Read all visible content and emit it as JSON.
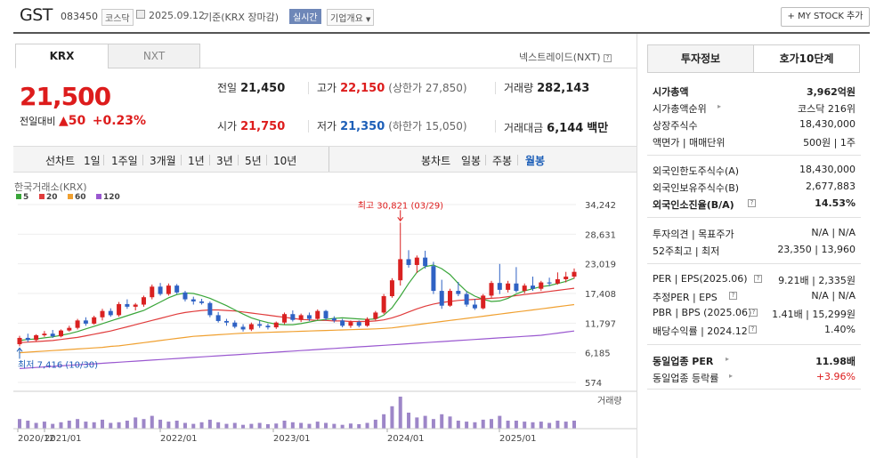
{
  "header": {
    "name": "GST",
    "code": "083450",
    "market_badge": "코스닥",
    "date_text": "2025.09.12",
    "basis_text": "기준(KRX 장마감)",
    "realtime_badge": "실시간",
    "company_overview": "기업개요",
    "my_stock_label": "+ MY STOCK 추가"
  },
  "tabs": {
    "krx": "KRX",
    "nxt": "NXT",
    "nxt_link": "넥스트레이드(NXT)"
  },
  "price": {
    "current": "21,500",
    "change_label": "전일대비",
    "change_arrow": "▲",
    "change_value": "50",
    "change_rate": "+0.23%"
  },
  "quote": {
    "prev_label": "전일",
    "prev_value": "21,450",
    "high_label": "고가",
    "high_value": "22,150",
    "upper_limit": "(상한가 27,850)",
    "volume_label": "거래량",
    "volume_value": "282,143",
    "open_label": "시가",
    "open_value": "21,750",
    "low_label": "저가",
    "low_value": "21,350",
    "lower_limit": "(하한가 15,050)",
    "amount_label": "거래대금",
    "amount_value": "6,144",
    "amount_unit": "백만"
  },
  "periods": {
    "line_chart": "선차트",
    "day1": "1일",
    "week1": "1주일",
    "month3": "3개월",
    "year1": "1년",
    "year3": "3년",
    "year5": "5년",
    "year10": "10년",
    "candle_chart": "봉차트",
    "daily": "일봉",
    "weekly": "주봉",
    "monthly": "월봉"
  },
  "right_panel": {
    "tab_info": "투자정보",
    "tab_hoga": "호가10단계",
    "market_cap_label": "시가총액",
    "market_cap_value": "3,962억원",
    "market_cap_rank_label": "시가총액순위",
    "market_cap_rank_value": "코스닥 216위",
    "listed_shares_label": "상장주식수",
    "listed_shares_value": "18,430,000",
    "face_value_label": "액면가 | 매매단위",
    "face_value_value": "500원 | 1주",
    "foreign_limit_label": "외국인한도주식수(A)",
    "foreign_limit_value": "18,430,000",
    "foreign_hold_label": "외국인보유주식수(B)",
    "foreign_hold_value": "2,677,883",
    "foreign_ratio_label": "외국인소진율(B/A)",
    "foreign_ratio_value": "14.53%",
    "opinion_label": "투자의견 | 목표주가",
    "opinion_value": "N/A | N/A",
    "week52_label": "52주최고 | 최저",
    "week52_value": "23,350 | 13,960",
    "per_label": "PER | EPS(2025.06)",
    "per_value": "9.21배 | 2,335원",
    "est_per_label": "추정PER | EPS",
    "est_per_value": "N/A | N/A",
    "pbr_label": "PBR | BPS (2025.06)",
    "pbr_value": "1.41배 | 15,299원",
    "dividend_label": "배당수익률 | 2024.12",
    "dividend_value": "1.40%",
    "sector_per_label": "동일업종 PER",
    "sector_per_value": "11.98배",
    "sector_rate_label": "동일업종 등락률",
    "sector_rate_value": "+3.96%"
  },
  "chart_data": {
    "type": "candlestick",
    "title": "한국거래소(KRX)",
    "legend": [
      {
        "name": "5",
        "color": "#3aa63a"
      },
      {
        "name": "20",
        "color": "#e03c3c"
      },
      {
        "name": "60",
        "color": "#f0a030"
      },
      {
        "name": "120",
        "color": "#9a58d0"
      }
    ],
    "y_ticks": [
      "34,242",
      "28,631",
      "23,019",
      "17,408",
      "11,797",
      "6,185",
      "574"
    ],
    "y_tick_values": [
      34242,
      28631,
      23019,
      17408,
      11797,
      6185,
      574
    ],
    "x_ticks": [
      "2020/12",
      "2021/01",
      "2022/01",
      "2023/01",
      "2024/01",
      "2025/01"
    ],
    "max_label": "최고 30,821 (03/29)",
    "min_label": "최저 7,416 (10/30)",
    "volume_label": "거래량",
    "candles": [
      [
        7800,
        9400,
        7416,
        9000
      ],
      [
        9000,
        9800,
        8200,
        8600
      ],
      [
        8600,
        9700,
        8400,
        9500
      ],
      [
        9500,
        10300,
        9200,
        9800
      ],
      [
        9800,
        10500,
        9000,
        9300
      ],
      [
        9300,
        10600,
        9100,
        10400
      ],
      [
        10400,
        11300,
        10200,
        10900
      ],
      [
        10900,
        12600,
        10600,
        12300
      ],
      [
        12300,
        12900,
        11300,
        11700
      ],
      [
        11700,
        13200,
        11500,
        12900
      ],
      [
        12900,
        14500,
        12300,
        14100
      ],
      [
        14100,
        14600,
        13000,
        13300
      ],
      [
        13300,
        15800,
        13000,
        15400
      ],
      [
        15400,
        16300,
        14500,
        14900
      ],
      [
        14900,
        15600,
        14200,
        15300
      ],
      [
        15300,
        17000,
        14900,
        16700
      ],
      [
        16700,
        19100,
        16300,
        18700
      ],
      [
        18700,
        19400,
        17000,
        17300
      ],
      [
        17300,
        19300,
        17000,
        18900
      ],
      [
        18900,
        19200,
        17300,
        17600
      ],
      [
        17600,
        17900,
        15900,
        16300
      ],
      [
        16300,
        16800,
        15300,
        15900
      ],
      [
        15900,
        16400,
        15300,
        15600
      ],
      [
        15600,
        15900,
        12900,
        13300
      ],
      [
        13300,
        13900,
        11900,
        12200
      ],
      [
        12200,
        12600,
        11300,
        11900
      ],
      [
        11900,
        12300,
        10800,
        11100
      ],
      [
        11100,
        11600,
        10200,
        10600
      ],
      [
        10600,
        11900,
        10300,
        11600
      ],
      [
        11600,
        12300,
        10900,
        11300
      ],
      [
        11300,
        11700,
        10600,
        11000
      ],
      [
        11000,
        12100,
        10700,
        11900
      ],
      [
        11900,
        13800,
        11600,
        13500
      ],
      [
        13500,
        14200,
        12100,
        12400
      ],
      [
        12400,
        13600,
        12000,
        13300
      ],
      [
        13300,
        13800,
        12200,
        12600
      ],
      [
        12600,
        14400,
        12400,
        14100
      ],
      [
        14100,
        14300,
        12300,
        12700
      ],
      [
        12700,
        13100,
        11900,
        12300
      ],
      [
        12300,
        12600,
        11000,
        11300
      ],
      [
        11300,
        12300,
        10900,
        12000
      ],
      [
        12000,
        12300,
        11000,
        11300
      ],
      [
        11300,
        12900,
        11100,
        12600
      ],
      [
        12600,
        14100,
        12300,
        13800
      ],
      [
        13800,
        17300,
        13500,
        16900
      ],
      [
        16900,
        20300,
        16600,
        19900
      ],
      [
        19900,
        30821,
        18900,
        23900
      ],
      [
        23900,
        25600,
        22300,
        22800
      ],
      [
        22800,
        24600,
        21300,
        24200
      ],
      [
        24200,
        25500,
        22100,
        22600
      ],
      [
        22600,
        23400,
        17300,
        17900
      ],
      [
        17900,
        20000,
        14500,
        15100
      ],
      [
        15100,
        18300,
        14900,
        17900
      ],
      [
        17900,
        19600,
        16900,
        17300
      ],
      [
        17300,
        17800,
        14900,
        15300
      ],
      [
        15300,
        16400,
        14300,
        14600
      ],
      [
        14600,
        17300,
        14400,
        17000
      ],
      [
        17000,
        19800,
        16600,
        19400
      ],
      [
        19400,
        23000,
        17300,
        18100
      ],
      [
        18100,
        19800,
        17600,
        19300
      ],
      [
        19300,
        22400,
        17600,
        17900
      ],
      [
        17900,
        19300,
        17400,
        18900
      ],
      [
        18900,
        20600,
        17900,
        18300
      ],
      [
        18300,
        19800,
        17900,
        19500
      ],
      [
        19500,
        20400,
        18800,
        19300
      ],
      [
        19300,
        21400,
        19100,
        20100
      ],
      [
        20100,
        21500,
        19500,
        20600
      ],
      [
        20600,
        22150,
        20200,
        21500
      ]
    ],
    "ma5": [
      8500,
      8700,
      8800,
      9000,
      9200,
      9500,
      9800,
      10200,
      10700,
      11200,
      11700,
      12200,
      12700,
      13200,
      13700,
      14200,
      15000,
      15800,
      16600,
      17200,
      17500,
      17400,
      17000,
      16500,
      15800,
      15100,
      14300,
      13500,
      12800,
      12300,
      11900,
      11600,
      11500,
      11500,
      11700,
      12000,
      12300,
      12500,
      12700,
      12800,
      12700,
      12600,
      12500,
      12600,
      13300,
      14700,
      16900,
      19300,
      21400,
      22500,
      22800,
      22100,
      21000,
      19300,
      17800,
      16900,
      16300,
      15900,
      16000,
      16500,
      17300,
      17900,
      18300,
      18700,
      18900,
      19300,
      19700,
      20300
    ],
    "ma20": [
      8100,
      8200,
      8300,
      8400,
      8500,
      8700,
      8900,
      9100,
      9400,
      9700,
      10000,
      10300,
      10700,
      11100,
      11500,
      11900,
      12300,
      12700,
      13100,
      13500,
      13800,
      14000,
      14200,
      14300,
      14300,
      14200,
      14100,
      13900,
      13700,
      13500,
      13300,
      13100,
      12900,
      12700,
      12500,
      12400,
      12300,
      12300,
      12200,
      12200,
      12100,
      12100,
      12100,
      12200,
      12400,
      12800,
      13300,
      13900,
      14500,
      15000,
      15400,
      15700,
      15900,
      16100,
      16200,
      16300,
      16400,
      16500,
      16600,
      16800,
      17000,
      17200,
      17400,
      17600,
      17800,
      18000,
      18200,
      18400
    ],
    "ma60": [
      6200,
      6300,
      6400,
      6500,
      6600,
      6700,
      6800,
      6900,
      7000,
      7100,
      7200,
      7400,
      7500,
      7700,
      7900,
      8100,
      8300,
      8500,
      8700,
      8900,
      9100,
      9300,
      9400,
      9500,
      9600,
      9700,
      9800,
      9900,
      9950,
      10000,
      10050,
      10100,
      10150,
      10200,
      10250,
      10300,
      10350,
      10400,
      10450,
      10500,
      10550,
      10600,
      10650,
      10700,
      10800,
      10900,
      11100,
      11300,
      11500,
      11700,
      11900,
      12100,
      12300,
      12500,
      12700,
      12900,
      13100,
      13300,
      13500,
      13700,
      13900,
      14100,
      14300,
      14500,
      14700,
      14900,
      15100,
      15300
    ],
    "ma120": [
      3200,
      3300,
      3400,
      3500,
      3600,
      3700,
      3800,
      3900,
      4000,
      4100,
      4200,
      4300,
      4400,
      4500,
      4600,
      4700,
      4800,
      4900,
      5000,
      5100,
      5200,
      5300,
      5400,
      5500,
      5600,
      5700,
      5800,
      5900,
      6000,
      6100,
      6200,
      6300,
      6400,
      6500,
      6600,
      6700,
      6800,
      6900,
      7000,
      7100,
      7200,
      7300,
      7400,
      7500,
      7600,
      7700,
      7800,
      7900,
      8000,
      8100,
      8200,
      8300,
      8400,
      8500,
      8600,
      8700,
      8800,
      8900,
      9000,
      9100,
      9200,
      9300,
      9400,
      9500,
      9700,
      9900,
      10100,
      10300
    ],
    "volumes": [
      30,
      25,
      18,
      22,
      15,
      20,
      25,
      30,
      22,
      20,
      28,
      18,
      20,
      25,
      35,
      30,
      40,
      28,
      22,
      25,
      18,
      15,
      20,
      28,
      20,
      15,
      18,
      12,
      15,
      18,
      14,
      16,
      25,
      20,
      18,
      15,
      22,
      18,
      15,
      12,
      16,
      14,
      18,
      28,
      45,
      70,
      100,
      50,
      35,
      40,
      30,
      45,
      38,
      25,
      22,
      20,
      28,
      30,
      40,
      25,
      25,
      22,
      20,
      22,
      18,
      25,
      22,
      25
    ]
  }
}
